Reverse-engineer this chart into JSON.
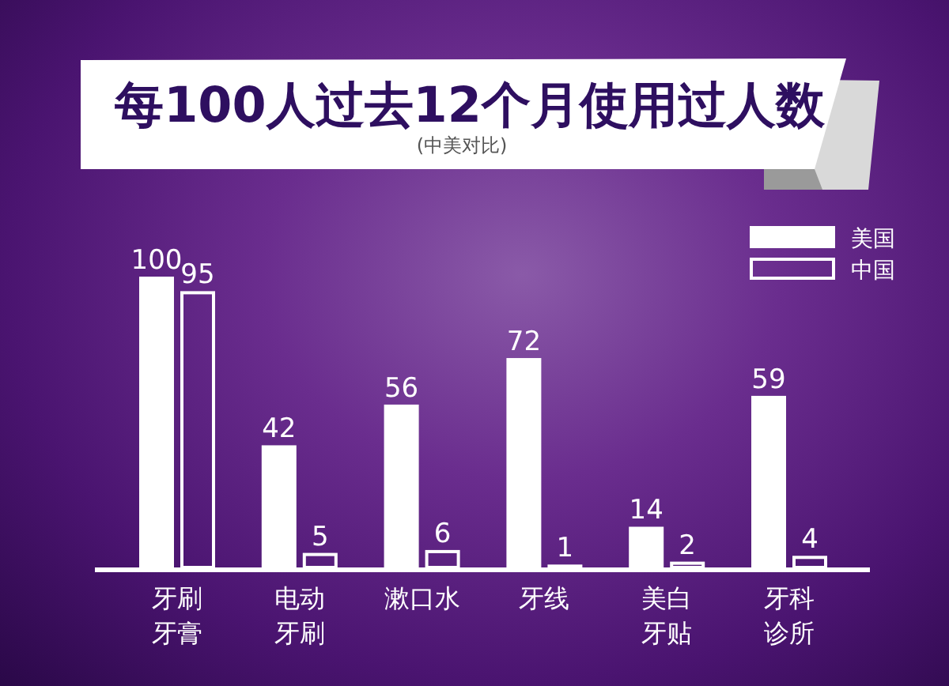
{
  "chart_data": {
    "type": "bar",
    "title": "每100人过去12个月使用过人数",
    "subtitle": "(中美对比)",
    "categories": [
      "牙刷牙膏",
      "电动牙刷",
      "漱口水",
      "牙线",
      "美白牙贴",
      "牙科诊所"
    ],
    "series": [
      {
        "name": "美国",
        "color": "#ffffff",
        "values": [
          100,
          42,
          56,
          72,
          14,
          59
        ]
      },
      {
        "name": "中国",
        "color": "#ffffff",
        "values": [
          95,
          5,
          6,
          1,
          2,
          4
        ]
      }
    ],
    "data_labels": true,
    "legend": "top right"
  }
}
